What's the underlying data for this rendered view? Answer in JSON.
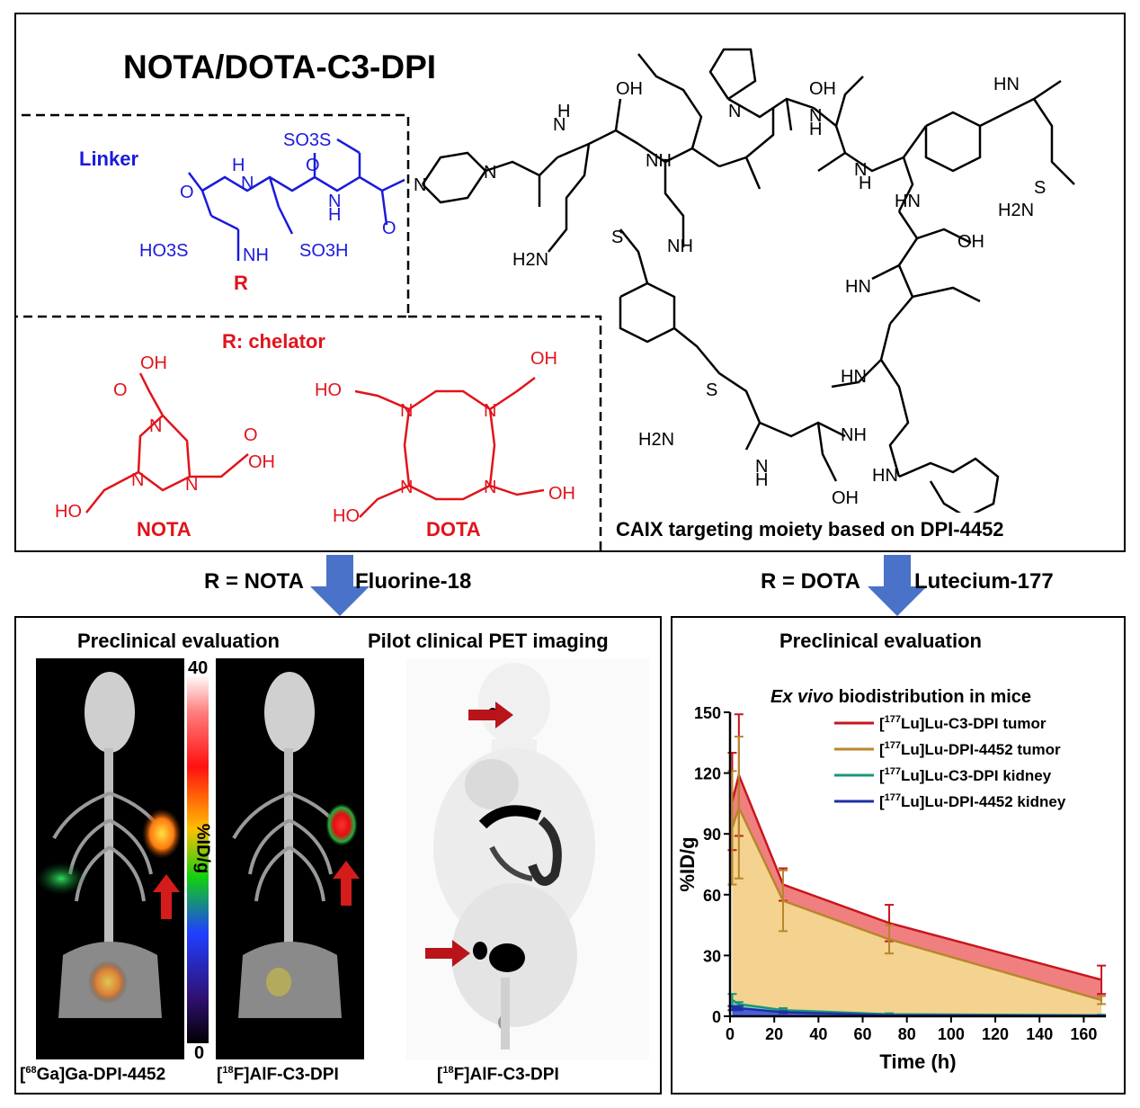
{
  "top": {
    "title": "NOTA/DOTA-C3-DPI",
    "linker_label": "Linker",
    "chelator_label": "R: chelator",
    "r_label": "R",
    "nota_label": "NOTA",
    "dota_label": "DOTA",
    "caix_label": "CAIX targeting moiety based on DPI-4452",
    "linker_groups": [
      "SO3S",
      "HO3S",
      "SO3H",
      "NH",
      "H",
      "N",
      "O"
    ],
    "chem_labels": [
      "OH",
      "O",
      "HN",
      "N",
      "NH",
      "H",
      "H2N",
      "S",
      "OH",
      "O"
    ]
  },
  "routes": {
    "left_r": "R = NOTA",
    "left_isotope": "Fluorine-18",
    "right_r": "R = DOTA",
    "right_isotope": "Lutecium-177"
  },
  "left_panel": {
    "preclinical_title": "Preclinical evaluation",
    "pilot_title": "Pilot clinical PET imaging",
    "colorbar_max": "40",
    "colorbar_min": "0",
    "colorbar_label": "%ID/g",
    "scan1_caption_pre": "68",
    "scan1_caption_main": "Ga]Ga-DPI-4452",
    "scan2_caption_pre": "18",
    "scan2_caption_main": "F]AlF-C3-DPI",
    "scan3_caption_pre": "18",
    "scan3_caption_main": "F]AlF-C3-DPI"
  },
  "right_panel": {
    "title": "Preclinical evaluation"
  },
  "chart_data": {
    "type": "area",
    "title_italic": "Ex vivo",
    "title_rest": " biodistribution in mice",
    "xlabel": "Time (h)",
    "ylabel": "%ID/g",
    "xlim": [
      0,
      170
    ],
    "ylim": [
      0,
      150
    ],
    "xticks": [
      0,
      20,
      40,
      60,
      80,
      100,
      120,
      140,
      160
    ],
    "yticks": [
      0,
      30,
      60,
      90,
      120,
      150
    ],
    "x": [
      1,
      4,
      24,
      72,
      168
    ],
    "series": [
      {
        "name_sup": "177",
        "name_main": "Lu]Lu-C3-DPI tumor",
        "color": "#c8161d",
        "fill": "#f08080",
        "values": [
          106,
          119,
          65,
          46,
          18
        ],
        "err": [
          24,
          30,
          8,
          9,
          7
        ]
      },
      {
        "name_sup": "177",
        "name_main": "Lu]Lu-DPI-4452 tumor",
        "color": "#b8862b",
        "fill": "#f3d38f",
        "values": [
          93,
          103,
          57,
          38,
          8
        ],
        "err": [
          28,
          35,
          15,
          7,
          2
        ]
      },
      {
        "name_sup": "177",
        "name_main": "Lu]Lu-C3-DPI kidney",
        "color": "#17977a",
        "fill": "#7fc9b8",
        "values": [
          8,
          6,
          3,
          1,
          0.5
        ],
        "err": [
          3,
          1,
          1,
          0.5,
          0.3
        ]
      },
      {
        "name_sup": "177",
        "name_main": "Lu]Lu-DPI-4452 kidney",
        "color": "#1f2ea8",
        "fill": "#4a5fd6",
        "values": [
          4,
          4,
          2,
          0.5,
          0.2
        ],
        "err": [
          1,
          1,
          0.5,
          0.2,
          0.1
        ]
      }
    ]
  }
}
